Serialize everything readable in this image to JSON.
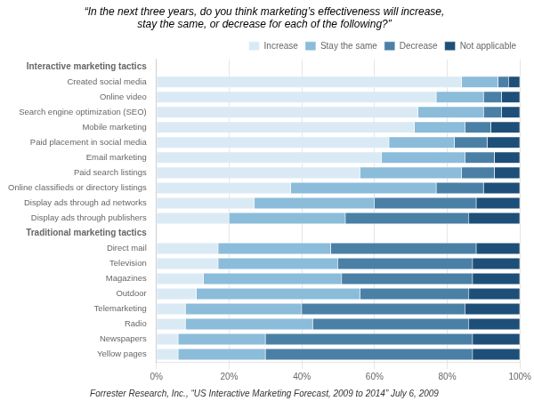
{
  "chart_data": {
    "type": "bar",
    "orientation": "horizontal",
    "stacked": true,
    "title": "“In the next three years, do you think marketing’s effectiveness will increase,\nstay the same, or decrease for each of the following?”",
    "annotations": [
      "Forrester Research, Inc., “US Interactive Marketing Forecast, 2009 to 2014” July 6, 2009"
    ],
    "categories": [
      "Interactive marketing tactics",
      "Created social media",
      "Online video",
      "Search engine optimization (SEO)",
      "Mobile marketing",
      "Paid placement in social media",
      "Email marketing",
      "Paid search listings",
      "Online classifieds or directory listings",
      "Display ads through ad networks",
      "Display ads through publishers",
      "Traditional marketing tactics",
      "Direct mail",
      "Television",
      "Magazines",
      "Outdoor",
      "Telemarketing",
      "Radio",
      "Newspapers",
      "Yellow pages"
    ],
    "series": [
      {
        "name": "Increase",
        "color": "#daeaf5",
        "values": [
          null,
          84,
          77,
          72,
          71,
          64,
          62,
          56,
          37,
          27,
          20,
          null,
          17,
          17,
          13,
          11,
          8,
          8,
          6,
          6
        ]
      },
      {
        "name": "Stay the same",
        "color": "#8bbcda",
        "values": [
          null,
          10,
          13,
          18,
          14,
          18,
          23,
          28,
          40,
          33,
          32,
          null,
          31,
          33,
          38,
          45,
          32,
          35,
          24,
          24
        ]
      },
      {
        "name": "Decrease",
        "color": "#4b80a6",
        "values": [
          null,
          3,
          5,
          5,
          7,
          9,
          8,
          9,
          13,
          28,
          34,
          null,
          40,
          37,
          36,
          30,
          45,
          43,
          57,
          57
        ]
      },
      {
        "name": "Not applicable",
        "color": "#1e4f78",
        "values": [
          null,
          3,
          5,
          5,
          8,
          9,
          7,
          7,
          10,
          12,
          14,
          null,
          12,
          13,
          13,
          14,
          15,
          14,
          13,
          13
        ]
      }
    ],
    "xlim": [
      0,
      100
    ],
    "xticks": [
      {
        "value": 0,
        "label": "0%"
      },
      {
        "value": 20,
        "label": "20%"
      },
      {
        "value": 40,
        "label": "40%"
      },
      {
        "value": 60,
        "label": "60%"
      },
      {
        "value": 80,
        "label": "80%"
      },
      {
        "value": 100,
        "label": "100%"
      }
    ],
    "grid": true,
    "legend": "upper right"
  }
}
